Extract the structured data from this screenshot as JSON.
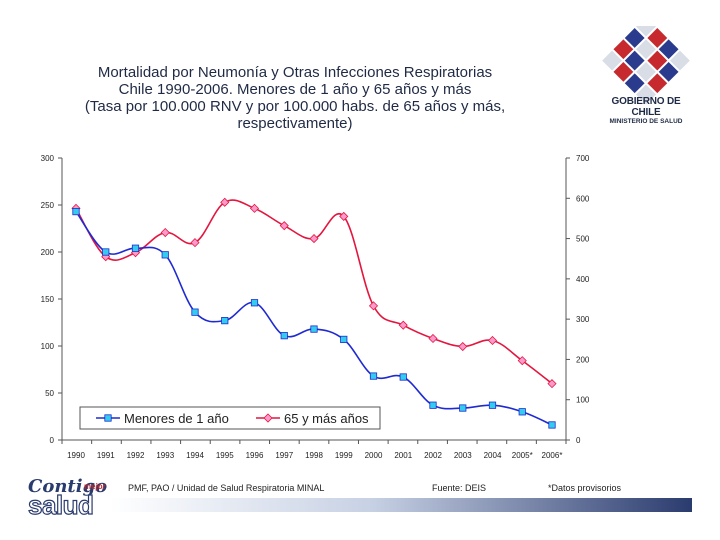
{
  "header": {
    "title_lines": [
      "Mortalidad por Neumonía y Otras Infecciones Respiratorias",
      "Chile 1990-2006.  Menores de 1 año y 65 años y más",
      "(Tasa por 100.000 RNV y por 100.000 habs. de 65 años y más,",
      "respectivamente)"
    ]
  },
  "logo": {
    "line1": "GOBIERNO DE CHILE",
    "line2": "MINISTERIO DE SALUD",
    "icon": "chile-government-mosaic-logo"
  },
  "footer": {
    "source_left": "PMF, PAO / Unidad de Salud Respiratoria MINAL",
    "source_mid": "Fuente: DEIS",
    "note": "*Datos provisorios",
    "brand_word1": "Contigo",
    "brand_word2": "mejor",
    "brand_word3": "salud"
  },
  "colors": {
    "series1": "#1f2ad1",
    "series1_marker": "#33ccee",
    "series2": "#e3163f",
    "series2_marker": "#ff99cc",
    "brand": "#2a3b6e"
  },
  "chart_data": {
    "type": "line",
    "categories": [
      "1990",
      "1991",
      "1992",
      "1993",
      "1994",
      "1995",
      "1996",
      "1997",
      "1998",
      "1999",
      "2000",
      "2001",
      "2002",
      "2003",
      "2004",
      "2005*",
      "2006*"
    ],
    "title": "",
    "xlabel": "",
    "y_left": {
      "min": 0,
      "max": 300,
      "ticks": [
        "0",
        "50",
        "100",
        "150",
        "200",
        "250",
        "300"
      ]
    },
    "y_right": {
      "min": 0,
      "max": 700,
      "ticks": [
        "0",
        "100",
        "200",
        "300",
        "400",
        "500",
        "600",
        "700"
      ]
    },
    "grid": false,
    "legend_position": "bottom-left",
    "series": [
      {
        "name": "Menores de 1 año",
        "axis": "left",
        "values": [
          243,
          200,
          204,
          197,
          136,
          127,
          146,
          111,
          118,
          107,
          68,
          67,
          37,
          34,
          37,
          30,
          16
        ]
      },
      {
        "name": "65 y más años",
        "axis": "right",
        "values": [
          575,
          455,
          465,
          515,
          490,
          590,
          575,
          532,
          500,
          555,
          333,
          285,
          252,
          232,
          247,
          197,
          140
        ]
      }
    ]
  }
}
